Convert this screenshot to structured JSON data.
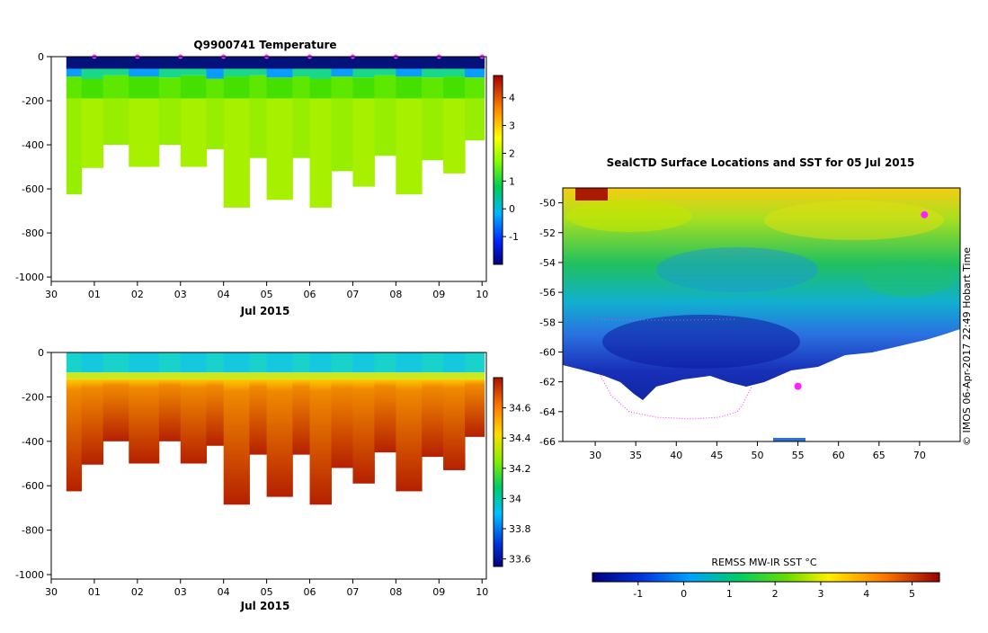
{
  "chart_data": [
    {
      "type": "heatmap",
      "title": "Q9900741  Temperature",
      "xlabel": "Jul 2015",
      "ylabel": "",
      "x_ticks": [
        "30",
        "01",
        "02",
        "03",
        "04",
        "05",
        "06",
        "07",
        "08",
        "09",
        "10"
      ],
      "xlim": [
        0,
        10.1
      ],
      "ylim": [
        -1020,
        0
      ],
      "y_ticks": [
        0,
        -200,
        -400,
        -600,
        -800,
        -1000
      ],
      "colorbar": {
        "min": -2,
        "max": 4.8,
        "ticks": [
          -1,
          0,
          1,
          2,
          3,
          4
        ]
      },
      "surface_values": [
        -1.6,
        -1.6,
        -1.5,
        -1.6,
        -1.6,
        -1.7,
        -1.6,
        -1.6,
        -1.5,
        -1.6
      ],
      "profiles": [
        {
          "day": 0.35,
          "bottom": -625,
          "mixed": -90
        },
        {
          "day": 0.7,
          "bottom": -505,
          "mixed": -100
        },
        {
          "day": 1.2,
          "bottom": -400,
          "mixed": -85
        },
        {
          "day": 1.8,
          "bottom": -500,
          "mixed": -90
        },
        {
          "day": 2.5,
          "bottom": -400,
          "mixed": -95
        },
        {
          "day": 3.0,
          "bottom": -500,
          "mixed": -85
        },
        {
          "day": 3.6,
          "bottom": -420,
          "mixed": -100
        },
        {
          "day": 4.0,
          "bottom": -685,
          "mixed": -90
        },
        {
          "day": 4.6,
          "bottom": -460,
          "mixed": -85
        },
        {
          "day": 5.0,
          "bottom": -650,
          "mixed": -95
        },
        {
          "day": 5.6,
          "bottom": -460,
          "mixed": -90
        },
        {
          "day": 6.0,
          "bottom": -685,
          "mixed": -100
        },
        {
          "day": 6.5,
          "bottom": -520,
          "mixed": -90
        },
        {
          "day": 7.0,
          "bottom": -590,
          "mixed": -95
        },
        {
          "day": 7.5,
          "bottom": -450,
          "mixed": -85
        },
        {
          "day": 8.0,
          "bottom": -625,
          "mixed": -90
        },
        {
          "day": 8.6,
          "bottom": -470,
          "mixed": -95
        },
        {
          "day": 9.1,
          "bottom": -530,
          "mixed": -90
        },
        {
          "day": 9.6,
          "bottom": -380,
          "mixed": -95
        }
      ]
    },
    {
      "type": "heatmap",
      "title": "",
      "xlabel": "Jul 2015",
      "ylabel": "",
      "x_ticks": [
        "30",
        "01",
        "02",
        "03",
        "04",
        "05",
        "06",
        "07",
        "08",
        "09",
        "10"
      ],
      "xlim": [
        0,
        10.1
      ],
      "ylim": [
        -1020,
        0
      ],
      "y_ticks": [
        0,
        -200,
        -400,
        -600,
        -800,
        -1000
      ],
      "colorbar": {
        "min": 33.55,
        "max": 34.8,
        "ticks": [
          33.6,
          33.8,
          34,
          34.2,
          34.4,
          34.6
        ]
      },
      "surface_value": 33.95,
      "deep_value": 34.72
    },
    {
      "type": "heatmap",
      "title": "SealCTD Surface Locations and SST for 05 Jul 2015",
      "xlabel": "",
      "ylabel": "",
      "xlim": [
        26,
        75
      ],
      "ylim": [
        -66,
        -49
      ],
      "x_ticks": [
        30,
        35,
        40,
        45,
        50,
        55,
        60,
        65,
        70
      ],
      "y_ticks": [
        -50,
        -52,
        -54,
        -56,
        -58,
        -60,
        -62,
        -64,
        -66
      ],
      "colorbar": {
        "label": "REMSS MW-IR SST °C",
        "min": -2,
        "max": 5.6,
        "ticks": [
          -1,
          0,
          1,
          2,
          3,
          4,
          5
        ]
      },
      "seal_positions": [
        {
          "lon": 55,
          "lat": -62.3
        },
        {
          "lon": 70.6,
          "lat": -50.8
        }
      ],
      "credit": "© IMOS 06-Apr-2017 22:49 Hobart Time"
    }
  ]
}
